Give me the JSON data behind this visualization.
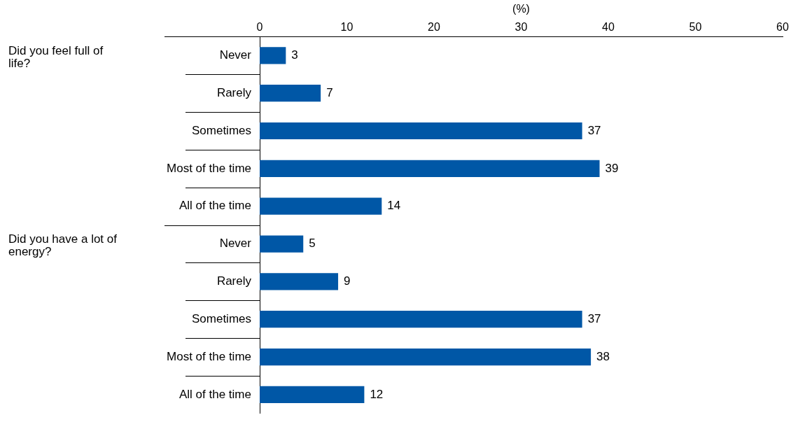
{
  "chart_data": {
    "type": "bar",
    "orientation": "horizontal",
    "xlabel": "(%)",
    "categories": [
      "Never",
      "Rarely",
      "Sometimes",
      "Most of the time",
      "All of the time",
      "Never",
      "Rarely",
      "Sometimes",
      "Most of the time",
      "All of the time"
    ],
    "values": [
      3,
      7,
      37,
      39,
      14,
      5,
      9,
      37,
      38,
      12
    ],
    "color": "#0057a6",
    "xlim": [
      0,
      60
    ],
    "xticks": [
      0,
      10,
      20,
      30,
      40,
      50,
      60
    ],
    "data_labels": true,
    "grid": false,
    "legend": false,
    "annotations": [
      "Did you feel full of life?",
      "Did you have a lot of energy?"
    ]
  }
}
